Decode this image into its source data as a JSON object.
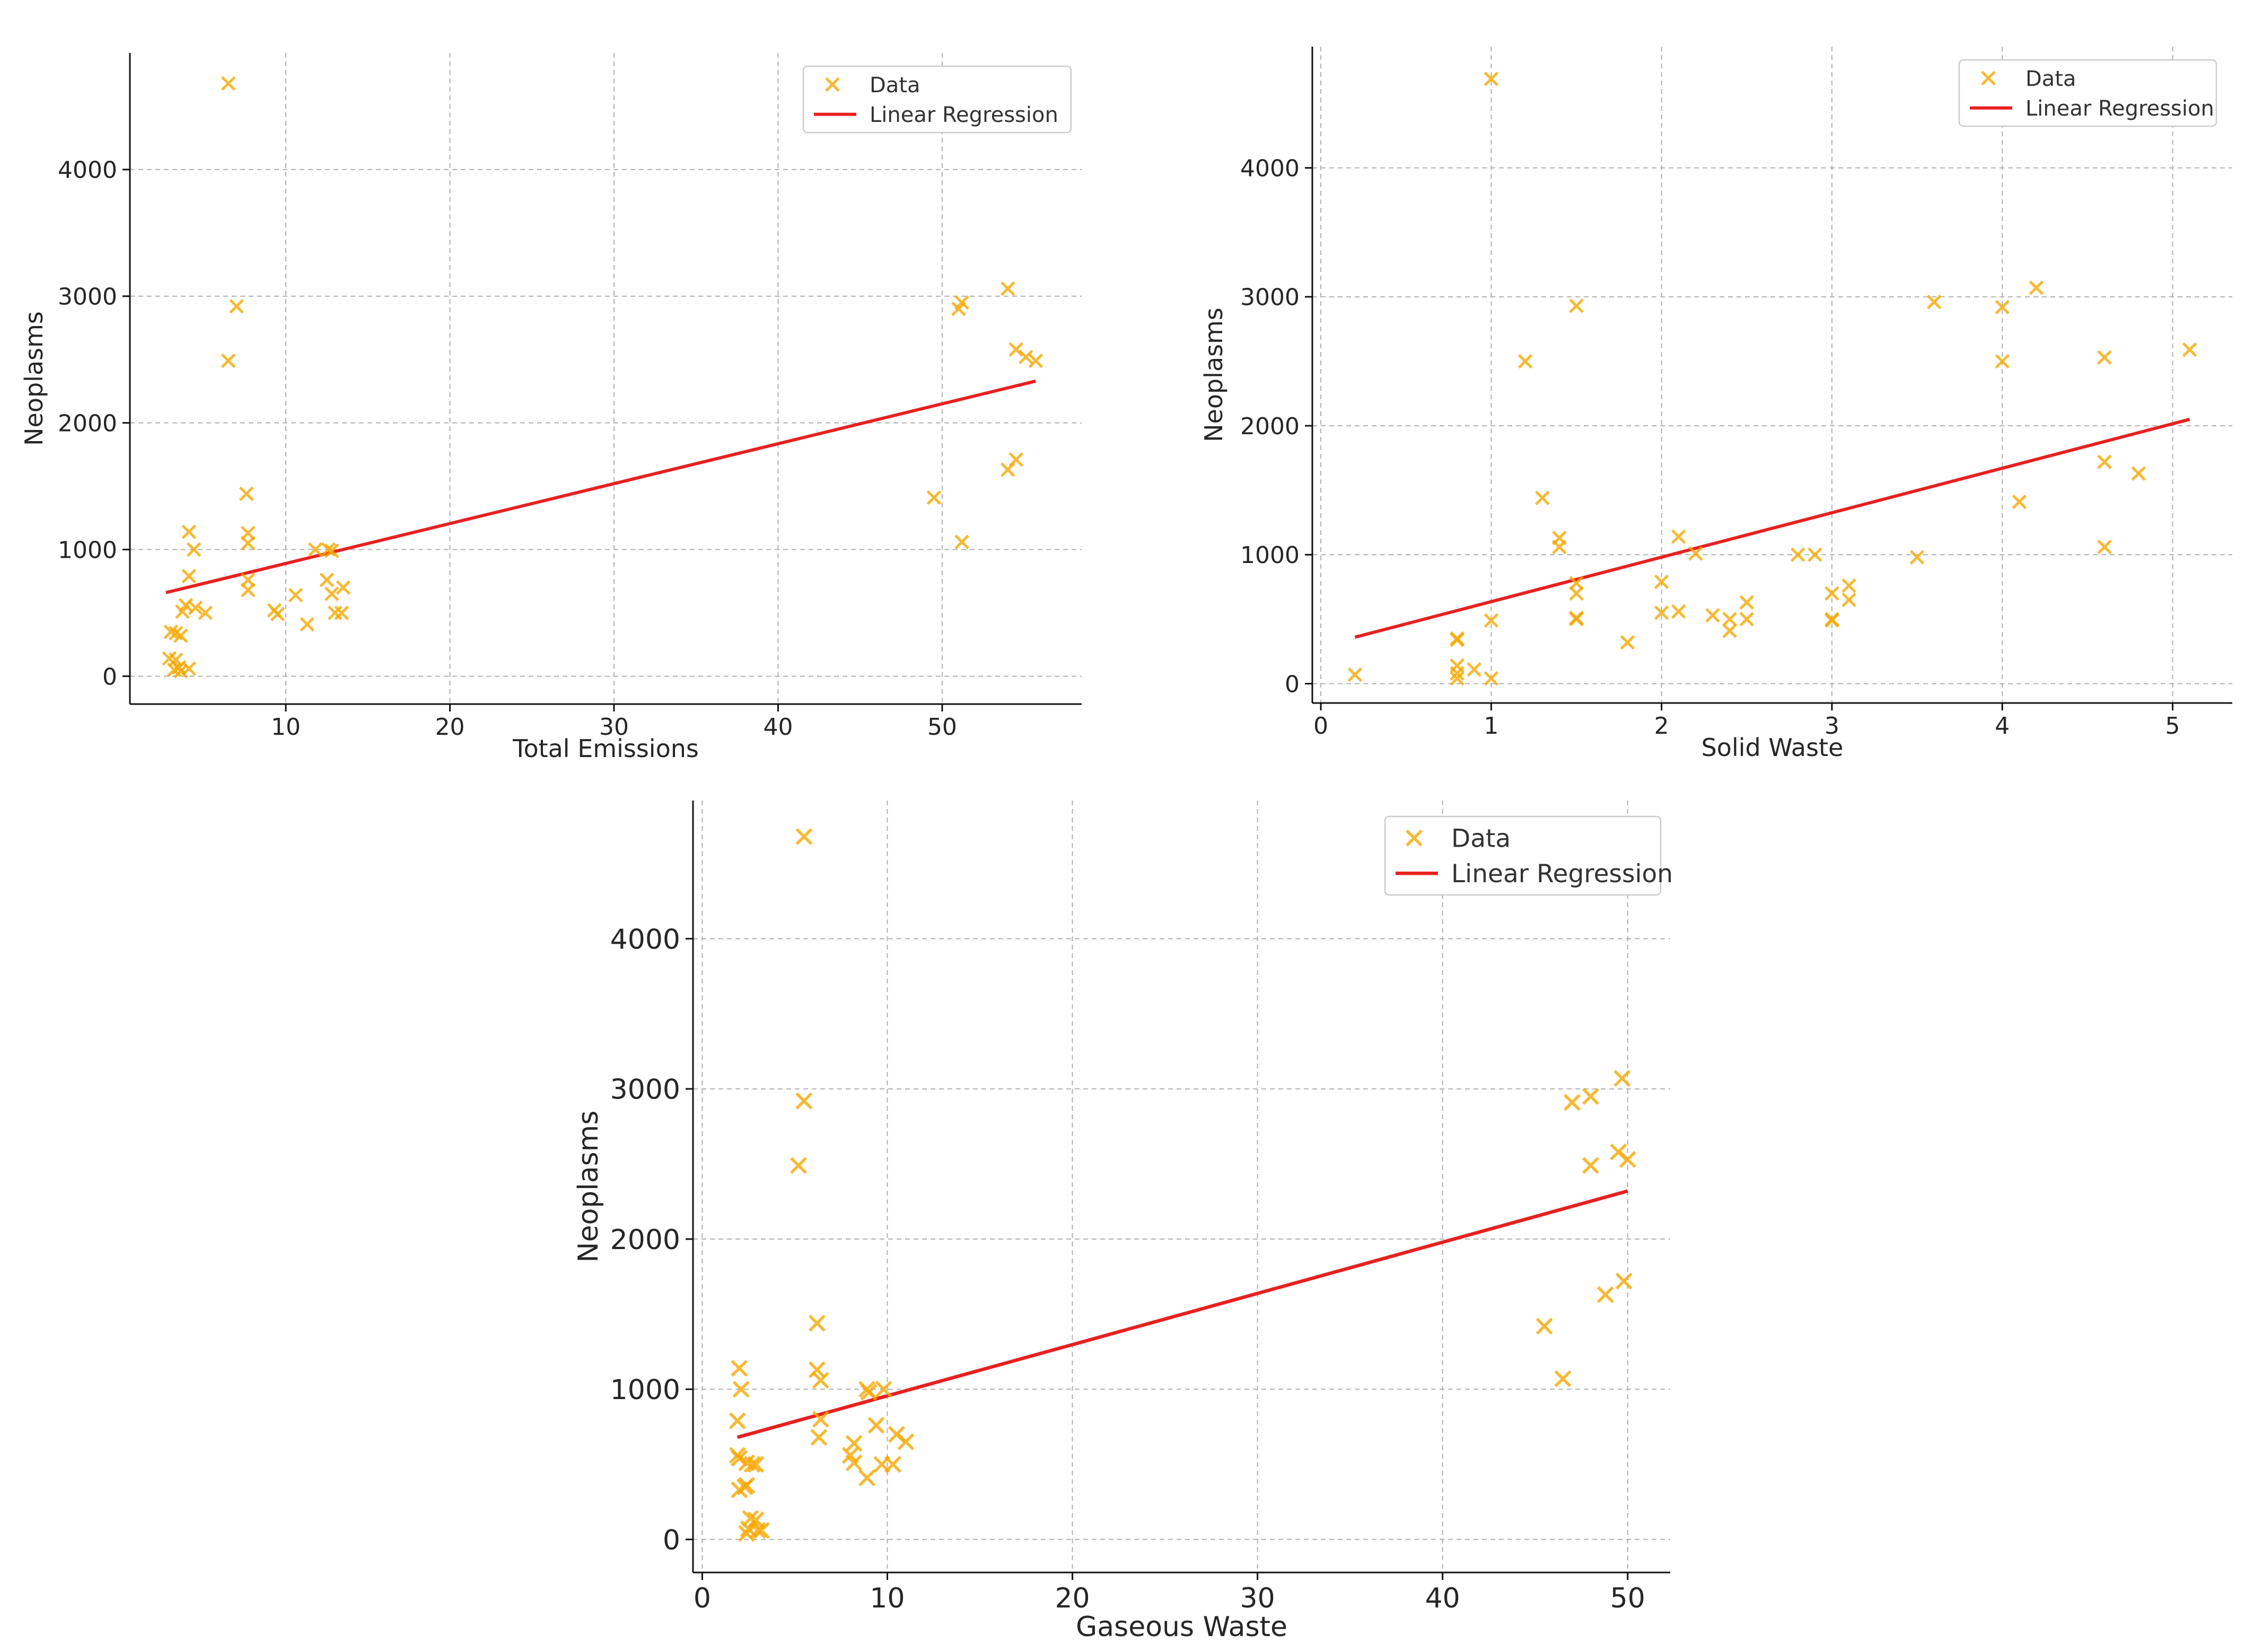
{
  "colors": {
    "data": "#F5A800",
    "regression": "#E82020"
  },
  "chart_data": [
    {
      "type": "scatter",
      "title": "",
      "xlabel": "Total Emissions",
      "ylabel": "Neoplasms",
      "xlim": [
        0.5,
        58.5
      ],
      "ylim": [
        -220,
        4920
      ],
      "xticks": [
        10,
        20,
        30,
        40,
        50
      ],
      "yticks": [
        0,
        1000,
        2000,
        3000,
        4000
      ],
      "grid": true,
      "legend_location": "top-right",
      "legend": [
        "Data",
        "Linear Regression"
      ],
      "series": [
        {
          "name": "Data",
          "marker": "x",
          "points": [
            [
              6.5,
              4680
            ],
            [
              7,
              2920
            ],
            [
              6.5,
              2490
            ],
            [
              7.6,
              1440
            ],
            [
              7.7,
              1130
            ],
            [
              7.7,
              1050
            ],
            [
              7.7,
              760
            ],
            [
              7.7,
              680
            ],
            [
              4.1,
              1140
            ],
            [
              4.4,
              1000
            ],
            [
              4.1,
              790
            ],
            [
              3.7,
              510
            ],
            [
              3.9,
              560
            ],
            [
              4.5,
              540
            ],
            [
              5.1,
              500
            ],
            [
              3.6,
              320
            ],
            [
              3,
              350
            ],
            [
              3.3,
              340
            ],
            [
              3.3,
              130
            ],
            [
              2.9,
              140
            ],
            [
              3.2,
              50
            ],
            [
              3.5,
              70
            ],
            [
              3.6,
              40
            ],
            [
              4.1,
              60
            ],
            [
              9.3,
              520
            ],
            [
              9.5,
              490
            ],
            [
              10.6,
              640
            ],
            [
              11.3,
              410
            ],
            [
              11.8,
              1000
            ],
            [
              12.6,
              1000
            ],
            [
              12.8,
              990
            ],
            [
              12.5,
              760
            ],
            [
              12.8,
              650
            ],
            [
              13,
              500
            ],
            [
              13.4,
              500
            ],
            [
              13.5,
              700
            ],
            [
              51,
              2900
            ],
            [
              51.2,
              2950
            ],
            [
              54,
              3060
            ],
            [
              54.5,
              2580
            ],
            [
              55.1,
              2520
            ],
            [
              55.7,
              2490
            ],
            [
              49.5,
              1410
            ],
            [
              51.2,
              1060
            ],
            [
              54,
              1630
            ],
            [
              54.5,
              1710
            ]
          ]
        },
        {
          "name": "Linear Regression",
          "line": [
            [
              2.7,
              660
            ],
            [
              55.7,
              2330
            ]
          ]
        }
      ]
    },
    {
      "type": "scatter",
      "title": "",
      "xlabel": "Solid Waste",
      "ylabel": "Neoplasms",
      "xlim": [
        -0.05,
        5.35
      ],
      "ylim": [
        -150,
        4940
      ],
      "xticks": [
        0,
        1,
        2,
        3,
        4,
        5
      ],
      "yticks": [
        0,
        1000,
        2000,
        3000,
        4000
      ],
      "grid": true,
      "legend_location": "top-right",
      "legend": [
        "Data",
        "Linear Regression"
      ],
      "series": [
        {
          "name": "Data",
          "marker": "x",
          "points": [
            [
              1,
              4690
            ],
            [
              1.5,
              2930
            ],
            [
              1.2,
              2500
            ],
            [
              1.3,
              1440
            ],
            [
              1.4,
              1130
            ],
            [
              1.4,
              1060
            ],
            [
              1.5,
              780
            ],
            [
              1.5,
              700
            ],
            [
              1.5,
              510
            ],
            [
              1.5,
              500
            ],
            [
              0.2,
              70
            ],
            [
              0.8,
              350
            ],
            [
              0.8,
              340
            ],
            [
              0.8,
              140
            ],
            [
              0.8,
              80
            ],
            [
              0.8,
              40
            ],
            [
              0.9,
              110
            ],
            [
              1,
              40
            ],
            [
              1,
              490
            ],
            [
              1.8,
              320
            ],
            [
              2,
              790
            ],
            [
              2,
              550
            ],
            [
              2.1,
              560
            ],
            [
              2.1,
              1140
            ],
            [
              2.2,
              1010
            ],
            [
              2.3,
              530
            ],
            [
              2.4,
              500
            ],
            [
              2.4,
              410
            ],
            [
              2.5,
              630
            ],
            [
              2.5,
              500
            ],
            [
              2.8,
              1000
            ],
            [
              2.9,
              1000
            ],
            [
              3,
              700
            ],
            [
              3,
              500
            ],
            [
              3,
              490
            ],
            [
              3.1,
              760
            ],
            [
              3.1,
              650
            ],
            [
              3.5,
              980
            ],
            [
              3.6,
              2960
            ],
            [
              4,
              2920
            ],
            [
              4,
              2500
            ],
            [
              4.1,
              1410
            ],
            [
              4.2,
              3070
            ],
            [
              4.6,
              2530
            ],
            [
              4.6,
              1720
            ],
            [
              4.6,
              1060
            ],
            [
              4.8,
              1630
            ],
            [
              5.1,
              2590
            ]
          ]
        },
        {
          "name": "Linear Regression",
          "line": [
            [
              0.2,
              360
            ],
            [
              5.1,
              2050
            ]
          ]
        }
      ]
    },
    {
      "type": "scatter",
      "title": "",
      "xlabel": "Gaseous Waste",
      "ylabel": "Neoplasms",
      "xlim": [
        -0.5,
        52.3
      ],
      "ylim": [
        -220,
        4920
      ],
      "xticks": [
        0,
        10,
        20,
        30,
        40,
        50
      ],
      "yticks": [
        0,
        1000,
        2000,
        3000,
        4000
      ],
      "grid": true,
      "legend_location": "top-right",
      "legend": [
        "Data",
        "Linear Regression"
      ],
      "series": [
        {
          "name": "Data",
          "marker": "x",
          "points": [
            [
              5.5,
              4680
            ],
            [
              5.5,
              2920
            ],
            [
              5.2,
              2490
            ],
            [
              6.2,
              1440
            ],
            [
              6.2,
              1130
            ],
            [
              6.4,
              1060
            ],
            [
              6.4,
              800
            ],
            [
              6.3,
              680
            ],
            [
              2,
              1140
            ],
            [
              2.1,
              1000
            ],
            [
              1.9,
              790
            ],
            [
              1.9,
              560
            ],
            [
              2,
              540
            ],
            [
              2.4,
              510
            ],
            [
              2.7,
              500
            ],
            [
              2.9,
              500
            ],
            [
              2,
              330
            ],
            [
              2.3,
              350
            ],
            [
              2.4,
              360
            ],
            [
              2.6,
              140
            ],
            [
              2.9,
              130
            ],
            [
              2.5,
              70
            ],
            [
              2.4,
              40
            ],
            [
              3,
              60
            ],
            [
              3.2,
              60
            ],
            [
              8.2,
              510
            ],
            [
              8,
              560
            ],
            [
              8.2,
              640
            ],
            [
              8.9,
              410
            ],
            [
              8.9,
              1000
            ],
            [
              9,
              980
            ],
            [
              9.4,
              760
            ],
            [
              9.7,
              500
            ],
            [
              9.8,
              1000
            ],
            [
              10.3,
              500
            ],
            [
              10.5,
              700
            ],
            [
              11,
              650
            ],
            [
              47,
              2910
            ],
            [
              48,
              2950
            ],
            [
              49.7,
              3070
            ],
            [
              49.5,
              2580
            ],
            [
              50,
              2530
            ],
            [
              48,
              2490
            ],
            [
              45.5,
              1420
            ],
            [
              46.5,
              1070
            ],
            [
              48.8,
              1630
            ],
            [
              49.8,
              1720
            ]
          ]
        },
        {
          "name": "Linear Regression",
          "line": [
            [
              1.9,
              680
            ],
            [
              50,
              2320
            ]
          ]
        }
      ]
    }
  ]
}
